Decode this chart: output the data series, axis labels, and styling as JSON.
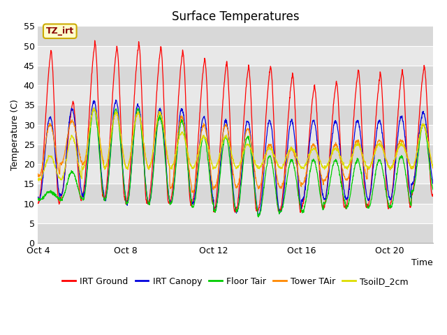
{
  "title": "Surface Temperatures",
  "xlabel": "Time",
  "ylabel": "Temperature (C)",
  "ylim": [
    0,
    55
  ],
  "yticks": [
    0,
    5,
    10,
    15,
    20,
    25,
    30,
    35,
    40,
    45,
    50,
    55
  ],
  "xticklabels": [
    "Oct 4",
    "Oct 8",
    "Oct 12",
    "Oct 16",
    "Oct 20"
  ],
  "xtick_positions": [
    0,
    4,
    8,
    12,
    16
  ],
  "xlim": [
    0,
    18
  ],
  "days": 18,
  "points_per_day": 96,
  "series": {
    "IRT Ground": {
      "color": "#ff0000",
      "day_max": [
        49,
        36,
        51,
        50,
        51,
        50,
        49,
        47,
        46,
        45,
        45,
        43,
        40,
        41,
        44,
        43,
        44,
        45
      ],
      "day_min": [
        10,
        11,
        12,
        11,
        10,
        10,
        10,
        10,
        8,
        8,
        8,
        8,
        9,
        9,
        9,
        9,
        9,
        12
      ],
      "sharp": true
    },
    "IRT Canopy": {
      "color": "#0000dd",
      "day_max": [
        32,
        34,
        36,
        36,
        35,
        34,
        34,
        32,
        31,
        31,
        31,
        31,
        31,
        31,
        31,
        31,
        32,
        33
      ],
      "day_min": [
        11,
        12,
        12,
        11,
        10,
        10,
        10,
        10,
        8,
        8,
        7,
        8,
        11,
        11,
        11,
        11,
        11,
        15
      ],
      "sharp": false
    },
    "Floor Tair": {
      "color": "#00cc00",
      "day_max": [
        13,
        18,
        34,
        34,
        34,
        32,
        31,
        27,
        27,
        27,
        22,
        21,
        21,
        21,
        21,
        21,
        22,
        30
      ],
      "day_min": [
        11,
        11,
        11,
        11,
        10,
        10,
        10,
        9,
        8,
        8,
        7,
        8,
        8,
        10,
        9,
        9,
        9,
        13
      ],
      "sharp": false
    },
    "Tower TAir": {
      "color": "#ff8800",
      "day_max": [
        30,
        31,
        34,
        33,
        33,
        33,
        32,
        30,
        30,
        29,
        25,
        24,
        25,
        25,
        26,
        26,
        26,
        30
      ],
      "day_min": [
        17,
        20,
        20,
        19,
        19,
        19,
        14,
        13,
        14,
        14,
        14,
        14,
        15,
        16,
        16,
        19,
        19,
        19
      ],
      "sharp": false
    },
    "TsoilD_2cm": {
      "color": "#dddd00",
      "day_max": [
        22,
        27,
        34,
        33,
        33,
        33,
        28,
        27,
        27,
        25,
        24,
        24,
        24,
        24,
        25,
        25,
        25,
        30
      ],
      "day_min": [
        16,
        16,
        19,
        19,
        19,
        19,
        19,
        19,
        19,
        19,
        19,
        19,
        19,
        19,
        19,
        19,
        19,
        19
      ],
      "sharp": false
    }
  },
  "annotation_text": "TZ_irt",
  "bg_color": "#ffffff",
  "plot_bg_color": "#e8e8e8",
  "band_colors": [
    "#d8d8d8",
    "#e8e8e8"
  ],
  "title_fontsize": 12,
  "axis_fontsize": 9,
  "legend_fontsize": 9,
  "tick_fontsize": 9
}
